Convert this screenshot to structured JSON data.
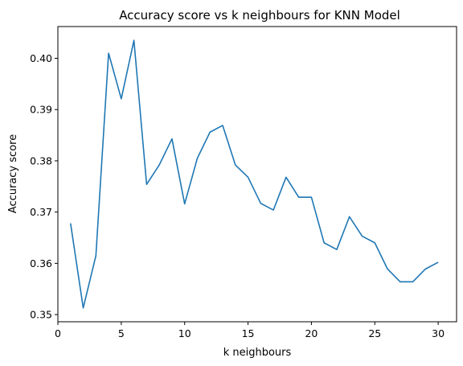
{
  "chart_data": {
    "type": "line",
    "title": "Accuracy score vs k neighbours for KNN Model",
    "xlabel": "k neighbours",
    "ylabel": "Accuracy score",
    "xlim": [
      0,
      31.45
    ],
    "ylim": [
      0.3486,
      0.4062
    ],
    "xticks": [
      0,
      5,
      10,
      15,
      20,
      25,
      30
    ],
    "yticks": [
      0.35,
      0.36,
      0.37,
      0.38,
      0.39,
      0.4
    ],
    "ytick_labels": [
      "0.35",
      "0.36",
      "0.37",
      "0.38",
      "0.39",
      "0.40"
    ],
    "grid": false,
    "series": [
      {
        "color": "#1f77b4",
        "x": [
          1,
          2,
          3,
          4,
          5,
          6,
          7,
          8,
          9,
          10,
          11,
          12,
          13,
          14,
          15,
          16,
          17,
          18,
          19,
          20,
          21,
          22,
          23,
          24,
          25,
          26,
          27,
          28,
          29,
          30
        ],
        "y": [
          0.3678,
          0.3513,
          0.3615,
          0.401,
          0.3921,
          0.4035,
          0.3754,
          0.3792,
          0.3843,
          0.3716,
          0.3805,
          0.3856,
          0.3869,
          0.3792,
          0.3768,
          0.3717,
          0.3704,
          0.3768,
          0.3729,
          0.3729,
          0.364,
          0.3627,
          0.3691,
          0.3653,
          0.364,
          0.3589,
          0.3564,
          0.3564,
          0.3589,
          0.3602
        ]
      }
    ]
  }
}
